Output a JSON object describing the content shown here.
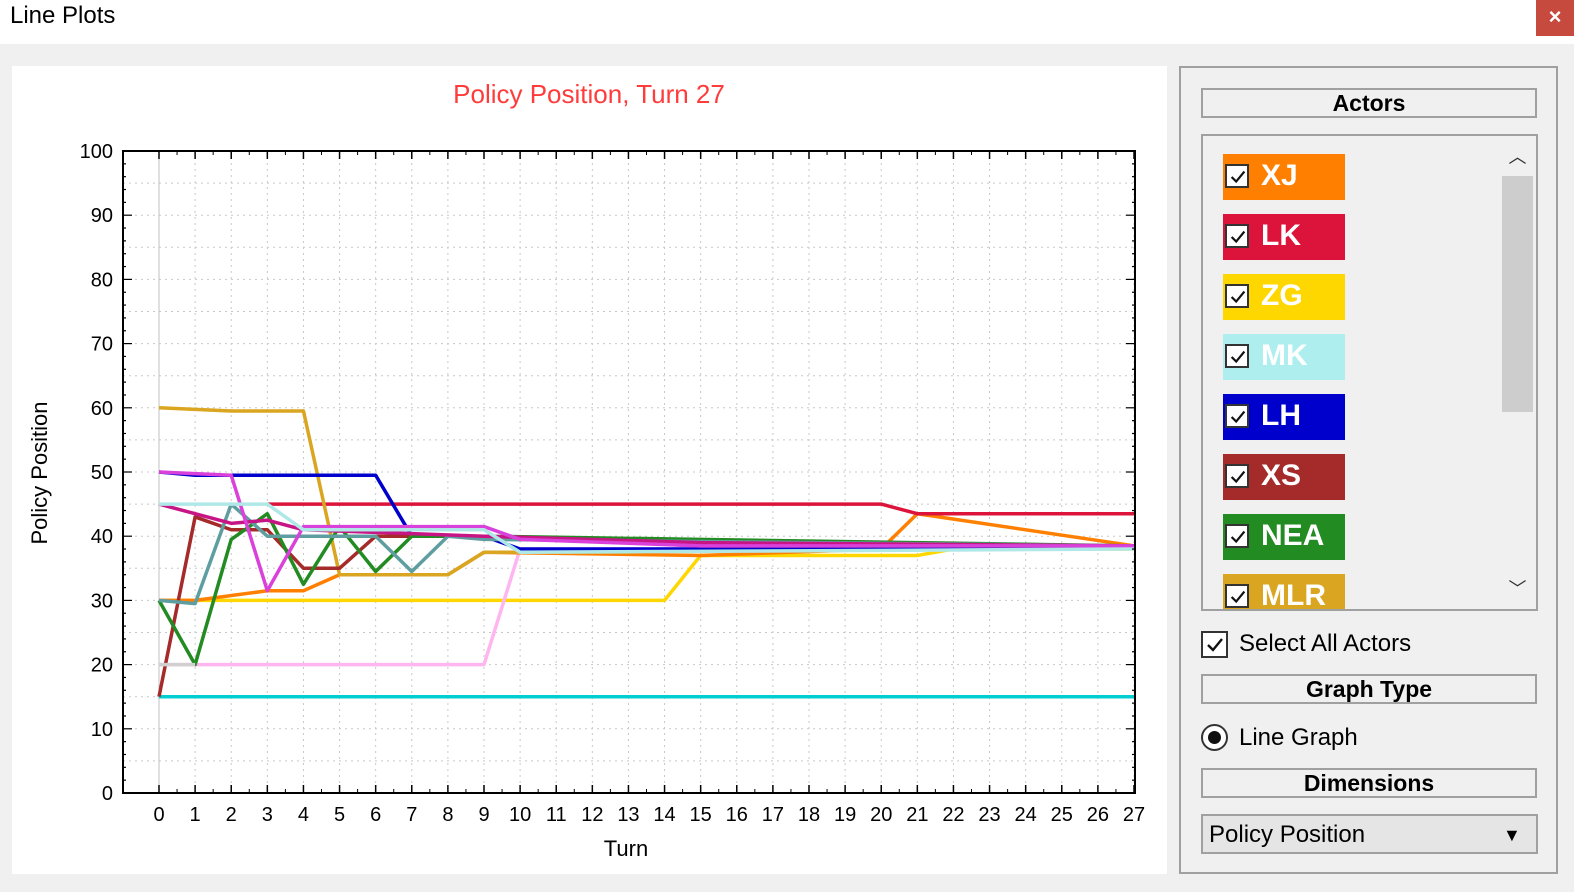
{
  "window": {
    "title": "Line Plots",
    "close_label": "×"
  },
  "colors": {
    "title_red": "#ff3b3b",
    "close_bg": "#c74a3e"
  },
  "side": {
    "actors_header": "Actors",
    "actors": [
      {
        "name": "XJ",
        "color": "#ff8000",
        "checked": true
      },
      {
        "name": "LK",
        "color": "#dc143c",
        "checked": true
      },
      {
        "name": "ZG",
        "color": "#ffd700",
        "checked": true
      },
      {
        "name": "MK",
        "color": "#afeeee",
        "checked": true
      },
      {
        "name": "LH",
        "color": "#0000cd",
        "checked": true
      },
      {
        "name": "XS",
        "color": "#a52a2a",
        "checked": true
      },
      {
        "name": "NEA",
        "color": "#228b22",
        "checked": true
      },
      {
        "name": "MLR",
        "color": "#daa520",
        "checked": true
      }
    ],
    "select_all_label": "Select All Actors",
    "graph_type_header": "Graph Type",
    "graph_type_option": "Line Graph",
    "dimensions_header": "Dimensions",
    "dimension_value": "Policy Position"
  },
  "chart_data": {
    "type": "line",
    "title": "Policy Position, Turn 27",
    "xlabel": "Turn",
    "ylabel": "Policy Position",
    "xlim": [
      0,
      27
    ],
    "ylim": [
      0,
      100
    ],
    "xticks": [
      0,
      1,
      2,
      3,
      4,
      5,
      6,
      7,
      8,
      9,
      10,
      11,
      12,
      13,
      14,
      15,
      16,
      17,
      18,
      19,
      20,
      21,
      22,
      23,
      24,
      25,
      26,
      27
    ],
    "yticks": [
      0,
      10,
      20,
      30,
      40,
      50,
      60,
      70,
      80,
      90,
      100
    ],
    "grid": true,
    "series": [
      {
        "color": "#00ced1",
        "x": [
          0,
          27
        ],
        "y": [
          15,
          15
        ]
      },
      {
        "color": "#ffd700",
        "x": [
          0,
          1,
          14,
          15,
          20,
          21,
          22,
          27
        ],
        "y": [
          30,
          30,
          30,
          37,
          37,
          37,
          38,
          38
        ]
      },
      {
        "color": "#ffb6f0",
        "x": [
          0,
          9,
          10,
          20,
          27
        ],
        "y": [
          20,
          20,
          38,
          38,
          38.5
        ]
      },
      {
        "color": "#ff8000",
        "x": [
          0,
          1,
          3,
          4,
          5,
          8,
          9,
          15,
          20,
          21,
          27
        ],
        "y": [
          30,
          30,
          31.5,
          31.5,
          34,
          34,
          37.5,
          37,
          38,
          43.5,
          38.5
        ]
      },
      {
        "color": "#dc143c",
        "x": [
          3,
          20,
          21,
          27
        ],
        "y": [
          45,
          45,
          43.5,
          43.5
        ]
      },
      {
        "color": "#daa520",
        "x": [
          0,
          2,
          4,
          5,
          7,
          8,
          9,
          13,
          15,
          27
        ],
        "y": [
          60,
          59.5,
          59.5,
          34,
          34,
          34,
          37.5,
          37.5,
          38,
          38.5
        ]
      },
      {
        "color": "#0000cd",
        "x": [
          0,
          1,
          2,
          3,
          6,
          7,
          9,
          10,
          15,
          27
        ],
        "y": [
          50,
          49.5,
          49.5,
          49.5,
          49.5,
          40,
          40,
          38,
          38,
          38.5
        ]
      },
      {
        "color": "#a52a2a",
        "x": [
          0,
          1,
          2,
          3,
          4,
          5,
          6,
          9,
          15,
          27
        ],
        "y": [
          15,
          43,
          41,
          41,
          35,
          35,
          40,
          40,
          38.5,
          38.5
        ]
      },
      {
        "color": "#228b22",
        "x": [
          0,
          1,
          2,
          3,
          4,
          5,
          6,
          7,
          9,
          27
        ],
        "y": [
          30,
          20,
          39.5,
          43.5,
          32.5,
          41.5,
          34.5,
          40,
          40,
          38.5
        ]
      },
      {
        "color": "#5f9ea0",
        "x": [
          0,
          1,
          2,
          3,
          4,
          5,
          6,
          7,
          8,
          9,
          27
        ],
        "y": [
          30,
          29.5,
          45,
          40,
          40,
          40,
          40,
          34.5,
          40,
          39.5,
          38.5
        ]
      },
      {
        "color": "#c71585",
        "x": [
          0,
          1,
          2,
          3,
          4,
          9,
          15,
          27
        ],
        "y": [
          45,
          43.5,
          42,
          42.5,
          41,
          40,
          39,
          38.5
        ]
      },
      {
        "color": "#da40da",
        "x": [
          0,
          2,
          3,
          4,
          9,
          10,
          15,
          27
        ],
        "y": [
          50,
          49.5,
          31.5,
          41.5,
          41.5,
          39.5,
          38.5,
          38.5
        ]
      },
      {
        "color": "#b0e8e8",
        "x": [
          0,
          3,
          4,
          9,
          10,
          27
        ],
        "y": [
          45,
          45,
          41,
          41,
          37.5,
          38
        ]
      },
      {
        "color": "#d0d0d0",
        "x": [
          0,
          1
        ],
        "y": [
          20,
          20
        ]
      }
    ]
  }
}
